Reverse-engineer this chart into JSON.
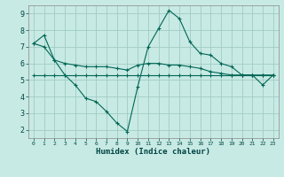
{
  "xlabel": "Humidex (Indice chaleur)",
  "ylabel": "",
  "bg_color": "#c8eae4",
  "grid_color": "#a0ccc4",
  "line_color": "#006655",
  "xlim": [
    -0.5,
    23.5
  ],
  "ylim": [
    1.5,
    9.5
  ],
  "yticks": [
    2,
    3,
    4,
    5,
    6,
    7,
    8,
    9
  ],
  "xticks": [
    0,
    1,
    2,
    3,
    4,
    5,
    6,
    7,
    8,
    9,
    10,
    11,
    12,
    13,
    14,
    15,
    16,
    17,
    18,
    19,
    20,
    21,
    22,
    23
  ],
  "series1_x": [
    0,
    1,
    2,
    3,
    4,
    5,
    6,
    7,
    8,
    9,
    10,
    11,
    12,
    13,
    14,
    15,
    16,
    17,
    18,
    19,
    20,
    21,
    22,
    23
  ],
  "series1_y": [
    7.2,
    7.7,
    6.2,
    5.3,
    4.7,
    3.9,
    3.7,
    3.1,
    2.4,
    1.9,
    4.6,
    7.0,
    8.1,
    9.2,
    8.7,
    7.3,
    6.6,
    6.5,
    6.0,
    5.8,
    5.3,
    5.3,
    4.7,
    5.3
  ],
  "series2_x": [
    0,
    1,
    2,
    3,
    4,
    5,
    6,
    7,
    8,
    9,
    10,
    11,
    12,
    13,
    14,
    15,
    16,
    17,
    18,
    19,
    20,
    21,
    22,
    23
  ],
  "series2_y": [
    7.2,
    7.0,
    6.2,
    6.0,
    5.9,
    5.8,
    5.8,
    5.8,
    5.7,
    5.6,
    5.9,
    6.0,
    6.0,
    5.9,
    5.9,
    5.8,
    5.7,
    5.5,
    5.4,
    5.3,
    5.3,
    5.3,
    5.3,
    5.3
  ],
  "series3_x": [
    0,
    1,
    2,
    3,
    4,
    5,
    6,
    7,
    8,
    9,
    10,
    11,
    12,
    13,
    14,
    15,
    16,
    17,
    18,
    19,
    20,
    21,
    22,
    23
  ],
  "series3_y": [
    5.3,
    5.3,
    5.3,
    5.3,
    5.3,
    5.3,
    5.3,
    5.3,
    5.3,
    5.3,
    5.3,
    5.3,
    5.3,
    5.3,
    5.3,
    5.3,
    5.3,
    5.3,
    5.3,
    5.3,
    5.3,
    5.3,
    5.3,
    5.3
  ]
}
